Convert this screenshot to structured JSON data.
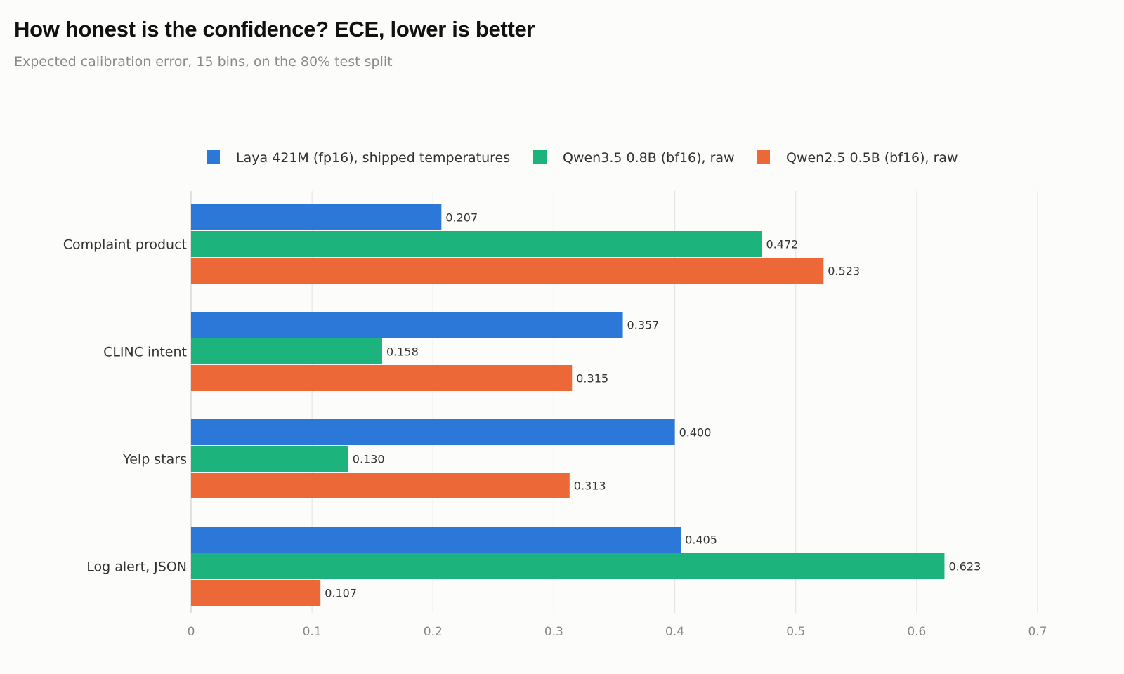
{
  "header": {
    "title": "How honest is the confidence? ECE, lower is better",
    "subtitle": "Expected calibration error, 15 bins, on the 80% test split"
  },
  "chart_data": {
    "type": "bar",
    "orientation": "horizontal",
    "title": "How honest is the confidence? ECE, lower is better",
    "subtitle": "Expected calibration error, 15 bins, on the 80% test split",
    "xlabel": "",
    "ylabel": "",
    "categories": [
      "Complaint product",
      "CLINC intent",
      "Yelp stars",
      "Log alert, JSON"
    ],
    "series": [
      {
        "name": "Laya 421M (fp16), shipped temperatures",
        "color": "#2b78d8",
        "values": [
          0.207,
          0.357,
          0.4,
          0.405
        ]
      },
      {
        "name": "Qwen3.5 0.8B (bf16), raw",
        "color": "#1db37d",
        "values": [
          0.472,
          0.158,
          0.13,
          0.623
        ]
      },
      {
        "name": "Qwen2.5 0.5B (bf16), raw",
        "color": "#ec6937",
        "values": [
          0.523,
          0.315,
          0.313,
          0.107
        ]
      }
    ],
    "xlim": [
      0,
      0.7
    ],
    "xticks": [
      0,
      0.1,
      0.2,
      0.3,
      0.4,
      0.5,
      0.6,
      0.7
    ],
    "xtick_labels": [
      "0",
      "0.1",
      "0.2",
      "0.3",
      "0.4",
      "0.5",
      "0.6",
      "0.7"
    ],
    "value_labels": [
      [
        "0.207",
        "0.357",
        "0.400",
        "0.405"
      ],
      [
        "0.472",
        "0.158",
        "0.130",
        "0.623"
      ],
      [
        "0.523",
        "0.315",
        "0.313",
        "0.107"
      ]
    ],
    "grid": "vertical",
    "legend_position": "top-center"
  }
}
